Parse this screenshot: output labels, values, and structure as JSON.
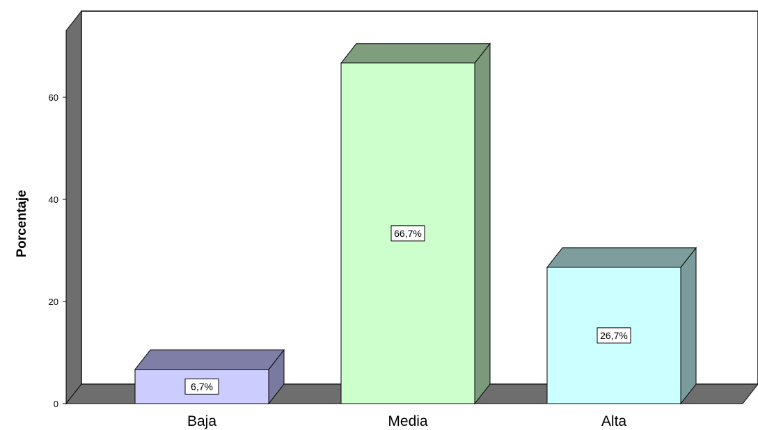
{
  "chart_data": {
    "type": "bar",
    "style": "3d",
    "title": "",
    "xlabel": "",
    "ylabel": "Porcentaje",
    "ylim": [
      0,
      70
    ],
    "yticks": [
      0,
      20,
      40,
      60
    ],
    "grid": false,
    "categories": [
      "Baja",
      "Media",
      "Alta"
    ],
    "values": [
      6.7,
      66.7,
      26.7
    ],
    "data_labels": [
      "6,7%",
      "66,7%",
      "26,7%"
    ],
    "colors": {
      "front": [
        "#ccccff",
        "#ccffcc",
        "#ccffff"
      ],
      "side": [
        "#7a7aa0",
        "#7a9a7a",
        "#7a9c9c"
      ],
      "top": [
        "#7e7ea6",
        "#7e9e7e",
        "#7e9e9e"
      ],
      "wall": "#ffffff",
      "wall_side": "#6e6e6e",
      "floor": "#6e6e6e"
    }
  }
}
